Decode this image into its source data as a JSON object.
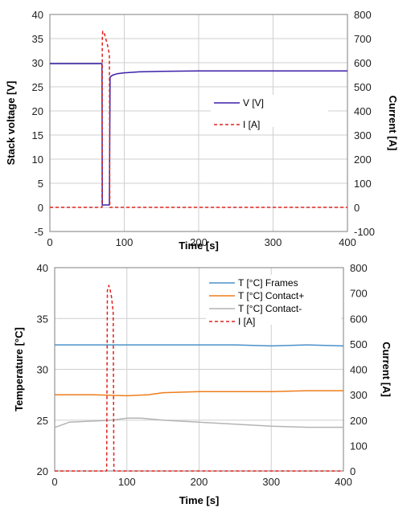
{
  "chart_data": [
    {
      "type": "line",
      "title": "",
      "xlabel": "Time [s]",
      "ylabel": "Stack voltage [V]",
      "y2label": "Current [A]",
      "xlim": [
        0,
        400
      ],
      "ylim": [
        -5,
        40
      ],
      "y2lim": [
        -100,
        800
      ],
      "xticks": [
        "0",
        "100",
        "200",
        "300",
        "400"
      ],
      "yticks": [
        "-5",
        "0",
        "5",
        "10",
        "15",
        "20",
        "25",
        "30",
        "35",
        "40"
      ],
      "y2ticks": [
        "-100",
        "0",
        "100",
        "200",
        "300",
        "400",
        "500",
        "600",
        "700",
        "800"
      ],
      "grid": true,
      "legend_position": "center-right",
      "series": [
        {
          "name": "V [V]",
          "axis": "left",
          "color": "#3b1fa8",
          "style": "solid",
          "x": [
            0,
            70,
            70.5,
            80,
            81,
            84,
            90,
            100,
            120,
            150,
            200,
            250,
            300,
            350,
            400
          ],
          "y": [
            29.8,
            29.8,
            0.5,
            0.5,
            27.0,
            27.4,
            27.7,
            27.9,
            28.1,
            28.2,
            28.3,
            28.3,
            28.3,
            28.3,
            28.3
          ]
        },
        {
          "name": "I [A]",
          "axis": "right",
          "color": "#e0201c",
          "style": "dashed",
          "x": [
            0,
            60,
            70,
            70.5,
            71,
            73,
            75,
            77,
            79,
            80,
            80.5,
            90,
            200,
            300,
            400
          ],
          "y": [
            0,
            0,
            0,
            700,
            730,
            725,
            700,
            680,
            650,
            630,
            0,
            0,
            0,
            0,
            0
          ]
        }
      ]
    },
    {
      "type": "line",
      "title": "",
      "xlabel": "Time [s]",
      "ylabel": "Temperature [°C]",
      "y2label": "Current [A]",
      "xlim": [
        0,
        400
      ],
      "ylim": [
        20,
        40
      ],
      "y2lim": [
        0,
        800
      ],
      "xticks": [
        "0",
        "100",
        "200",
        "300",
        "400"
      ],
      "yticks": [
        "20",
        "25",
        "30",
        "35",
        "40"
      ],
      "y2ticks": [
        "0",
        "100",
        "200",
        "300",
        "400",
        "500",
        "600",
        "700",
        "800"
      ],
      "grid": true,
      "legend_position": "top-right",
      "series": [
        {
          "name": "T [°C] Frames",
          "axis": "left",
          "color": "#4a90c9",
          "style": "solid",
          "x": [
            0,
            50,
            100,
            150,
            200,
            250,
            300,
            350,
            400
          ],
          "y": [
            32.4,
            32.4,
            32.4,
            32.4,
            32.4,
            32.4,
            32.3,
            32.4,
            32.3
          ]
        },
        {
          "name": "T [°C] Contact+",
          "axis": "left",
          "color": "#ee7d1c",
          "style": "solid",
          "x": [
            0,
            50,
            100,
            130,
            150,
            200,
            250,
            300,
            350,
            400
          ],
          "y": [
            27.5,
            27.5,
            27.4,
            27.5,
            27.7,
            27.8,
            27.8,
            27.8,
            27.9,
            27.9
          ]
        },
        {
          "name": "T [°C] Contact-",
          "axis": "left",
          "color": "#b4b4b4",
          "style": "solid",
          "x": [
            0,
            5,
            20,
            50,
            80,
            100,
            120,
            150,
            200,
            250,
            300,
            350,
            400
          ],
          "y": [
            24.3,
            24.4,
            24.8,
            24.9,
            25.0,
            25.2,
            25.2,
            25.0,
            24.8,
            24.6,
            24.4,
            24.3,
            24.3
          ]
        },
        {
          "name": "I [A]",
          "axis": "right",
          "color": "#e0201c",
          "style": "dashed",
          "x": [
            0,
            60,
            70,
            72,
            73,
            75,
            77,
            79,
            80,
            81,
            82,
            90,
            200,
            300,
            400
          ],
          "y": [
            0,
            0,
            0,
            0,
            710,
            730,
            710,
            680,
            650,
            630,
            0,
            0,
            0,
            0,
            0
          ]
        }
      ]
    }
  ]
}
